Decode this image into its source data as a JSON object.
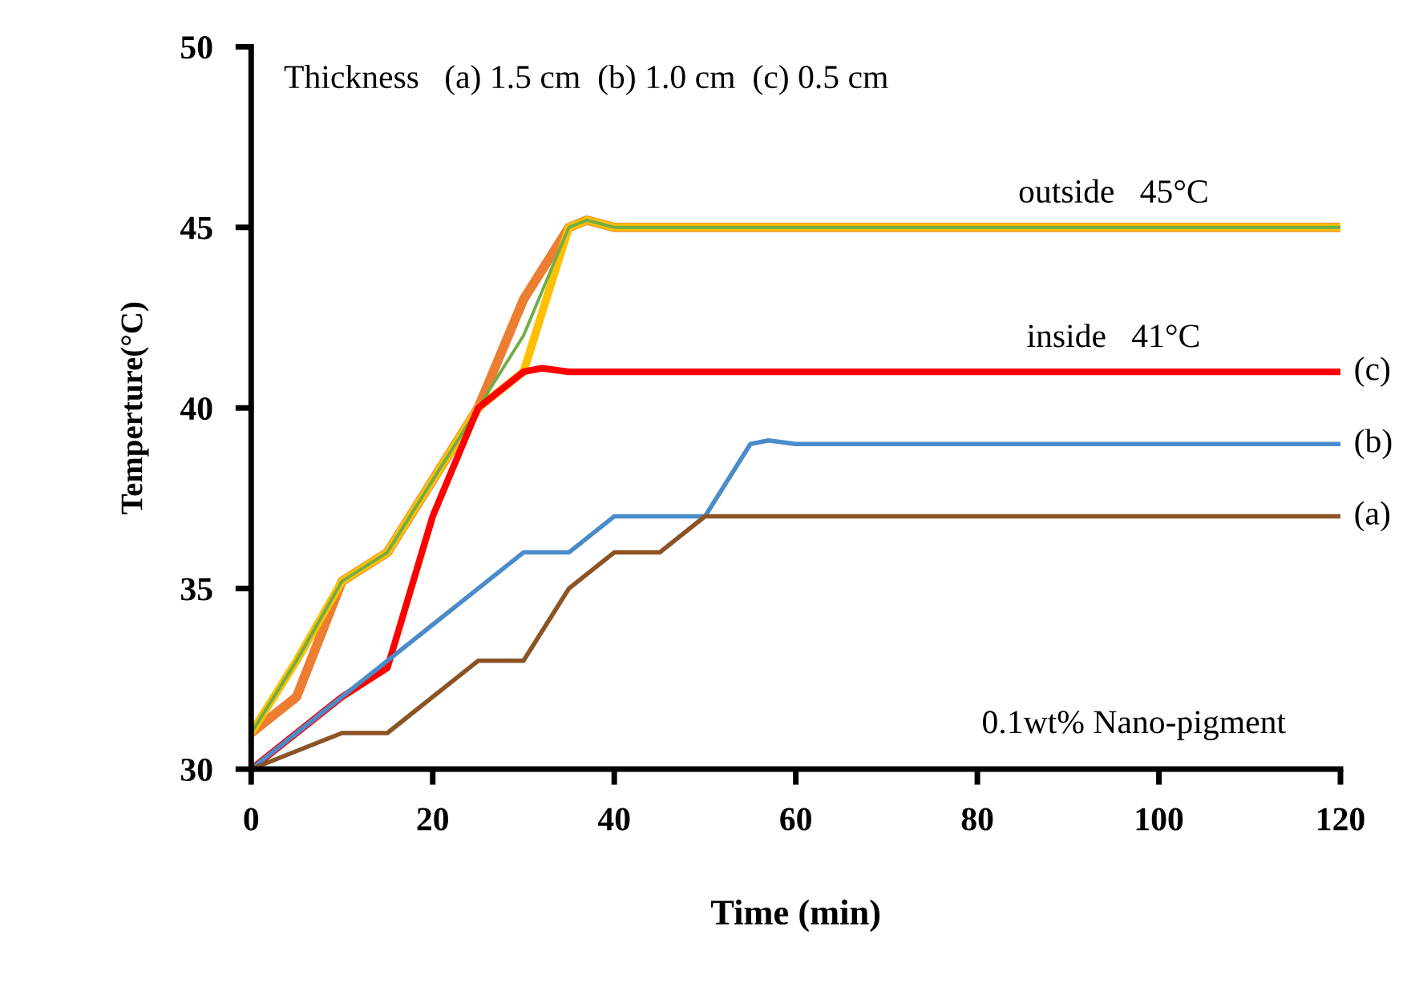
{
  "chart_data": {
    "type": "line",
    "xlabel": "Time (min)",
    "ylabel": "Temperture(°C)",
    "xlim": [
      0,
      120
    ],
    "xticks": [
      0,
      20,
      40,
      60,
      80,
      100,
      120
    ],
    "ylim": [
      30,
      50
    ],
    "yticks": [
      30,
      35,
      40,
      45,
      50
    ],
    "grid": false,
    "legend": false,
    "marker": "none",
    "line_style": "solid",
    "series": [
      {
        "color": "#ed7d31",
        "x": [
          0,
          5,
          10,
          15,
          20,
          25,
          30,
          35,
          37,
          40,
          120
        ],
        "values": [
          31,
          32,
          35.2,
          36,
          38,
          40,
          43,
          45,
          45.2,
          45,
          45
        ]
      },
      {
        "color": "#ffc000",
        "x": [
          0,
          5,
          10,
          15,
          20,
          25,
          30,
          35,
          37,
          40,
          120
        ],
        "values": [
          31,
          33,
          35.2,
          36,
          38,
          40,
          41,
          45,
          45.2,
          45,
          45
        ]
      },
      {
        "color": "#70ad47",
        "x": [
          0,
          5,
          10,
          15,
          20,
          25,
          30,
          35,
          37,
          40,
          120
        ],
        "values": [
          31,
          33,
          35.2,
          36,
          38,
          40,
          42,
          45,
          45.2,
          45,
          45
        ]
      },
      {
        "name": "(c)",
        "color": "#ff0000",
        "x": [
          0,
          5,
          10,
          15,
          20,
          25,
          30,
          32,
          35,
          120
        ],
        "values": [
          30,
          31,
          32,
          32.8,
          37,
          40,
          41,
          41.1,
          41,
          41
        ]
      },
      {
        "name": "(b)",
        "color": "#4a8cc9",
        "x": [
          0,
          5,
          10,
          15,
          20,
          25,
          30,
          35,
          40,
          45,
          50,
          55,
          57,
          60,
          120
        ],
        "values": [
          30,
          31,
          32,
          33,
          34,
          35,
          36,
          36,
          37,
          37,
          37,
          39,
          39.1,
          39,
          39
        ]
      },
      {
        "name": "(a)",
        "color": "#8c5425",
        "x": [
          0,
          5,
          10,
          15,
          20,
          25,
          30,
          35,
          40,
          45,
          50,
          55,
          120
        ],
        "values": [
          30,
          30.5,
          31,
          31,
          32,
          33,
          33,
          35,
          36,
          36,
          37,
          37,
          37
        ]
      }
    ],
    "annotations": [
      "Thickness   (a) 1.5 cm  (b) 1.0 cm  (c) 0.5 cm",
      {
        "text": "outside   45°C",
        "x": 95,
        "y": 45
      },
      {
        "text": "inside   41°C",
        "x": 95,
        "y": 41
      },
      "0.1wt% Nano-pigment"
    ]
  }
}
